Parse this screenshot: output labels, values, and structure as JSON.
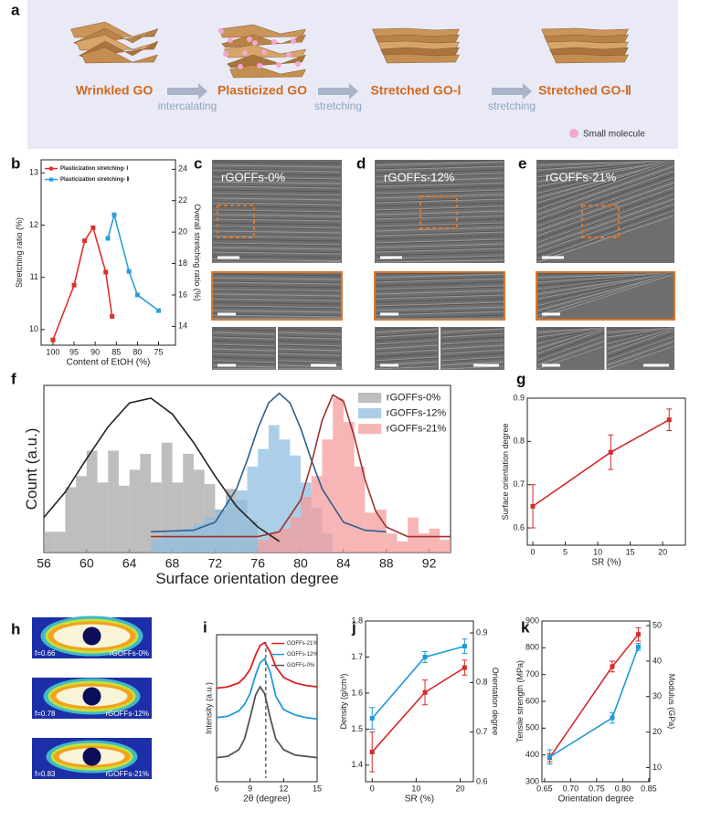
{
  "panel_a": {
    "label": "a",
    "stages": [
      "Wrinkled GO",
      "Plasticized GO",
      "Stretched GO-Ⅰ",
      "Stretched GO-Ⅱ"
    ],
    "steps": [
      "intercalating",
      "stretching",
      "stretching"
    ],
    "legend": "Small molecule"
  },
  "sem_panels": [
    {
      "label": "c",
      "sample": "rGOFFs-0%"
    },
    {
      "label": "d",
      "sample": "rGOFFs-12%"
    },
    {
      "label": "e",
      "sample": "rGOFFs-21%"
    }
  ],
  "patterns": {
    "label": "h",
    "items": [
      {
        "f": "f=0.66",
        "sample": "rGOFFs-0%"
      },
      {
        "f": "f=0.78",
        "sample": "rGOFFs-12%"
      },
      {
        "f": "f=0.83",
        "sample": "rGOFFs-21%"
      }
    ]
  },
  "chart_data": [
    {
      "label": "b",
      "type": "line",
      "markers": true,
      "xlabel": "Content of EtOH (%)",
      "ylabel": "Stretching ratio (%)",
      "y2label": "Overall stretching ratio (%)",
      "xlim": [
        102.8,
        71
      ],
      "xticks": [
        100,
        95,
        90,
        85,
        80,
        75
      ],
      "ylim": [
        9.7,
        13.25
      ],
      "yticks": [
        10,
        11,
        12,
        13
      ],
      "y2lim": [
        12.8,
        24.6
      ],
      "y2ticks": [
        14,
        16,
        18,
        20,
        22,
        24
      ],
      "legend": "upper left",
      "series": [
        {
          "name": "Plasticization stretching- Ⅰ",
          "color": "#e0302a",
          "x": [
            100,
            95,
            92.5,
            90.5,
            87.5,
            86
          ],
          "values": [
            9.8,
            10.85,
            11.7,
            11.95,
            11.1,
            10.25
          ]
        },
        {
          "name": "Plasticization stretching- Ⅱ",
          "color": "#2a9fd6",
          "axis": "y2",
          "x": [
            87,
            85.5,
            82,
            80,
            75
          ],
          "values": [
            19.6,
            21.1,
            17.5,
            16,
            15
          ]
        }
      ]
    },
    {
      "label": "f",
      "type": "histogram",
      "xlabel": "Surface orientation degree",
      "ylabel": "Count (a.u.)",
      "xlim": [
        56,
        94
      ],
      "xticks": [
        56,
        60,
        64,
        68,
        72,
        76,
        80,
        84,
        88,
        92
      ],
      "ylim": [
        0,
        105
      ],
      "legend": "upper right",
      "series": [
        {
          "name": "rGOFFs-0%",
          "color": "#a8a8a8",
          "bins": [
            56,
            57,
            58,
            59,
            60,
            61,
            62,
            63,
            64,
            65,
            66,
            67,
            68,
            69,
            70,
            71,
            72,
            73,
            74,
            75,
            76
          ],
          "counts": [
            13,
            13,
            41,
            48,
            64,
            44,
            64,
            42,
            52,
            62,
            44,
            69,
            44,
            62,
            52,
            43,
            27,
            40,
            33,
            20
          ]
        },
        {
          "name": "rGOFFs-12%",
          "color": "#8fbfe0",
          "bins": [
            66,
            67,
            68,
            69,
            70,
            71,
            72,
            73,
            74,
            75,
            76,
            77,
            78,
            79,
            80,
            81,
            82,
            83
          ],
          "counts": [
            8,
            12,
            13,
            15,
            18,
            22,
            27,
            33,
            39,
            54,
            65,
            80,
            71,
            61,
            44,
            28,
            12
          ]
        },
        {
          "name": "rGOFFs-21%",
          "color": "#f49c9c",
          "bins": [
            76,
            77,
            78,
            79,
            80,
            81,
            82,
            83,
            84,
            85,
            86,
            87,
            88,
            89,
            90,
            91,
            92,
            93,
            94
          ],
          "counts": [
            8,
            12,
            15,
            22,
            35,
            48,
            71,
            97,
            82,
            54,
            25,
            27,
            12,
            7,
            22,
            12,
            15,
            8
          ]
        }
      ],
      "fits": [
        {
          "color": "#222222",
          "x": [
            56,
            58,
            60,
            62,
            64,
            66,
            68,
            70,
            72,
            74,
            76,
            78
          ],
          "values": [
            22,
            38,
            59,
            79,
            94,
            97,
            87,
            69,
            48,
            29,
            16,
            7
          ]
        },
        {
          "color": "#2c5f8a",
          "x": [
            66,
            70,
            72,
            74,
            75,
            76,
            77,
            78,
            79,
            80,
            81,
            82,
            84,
            86,
            88
          ],
          "values": [
            13,
            14,
            19,
            40,
            58,
            78,
            94,
            100,
            94,
            78,
            58,
            40,
            19,
            14,
            13
          ]
        },
        {
          "color": "#a03030",
          "x": [
            66,
            76,
            78,
            80,
            81,
            82,
            83,
            84,
            85,
            86,
            87,
            88,
            90,
            94
          ],
          "values": [
            10,
            10,
            13,
            33,
            56,
            83,
            99,
            95,
            73,
            46,
            26,
            16,
            10,
            10
          ]
        }
      ]
    },
    {
      "label": "g",
      "type": "line",
      "markers": true,
      "xlabel": "SR (%)",
      "ylabel": "Surface orientation degree",
      "xlim": [
        -0.85,
        23.5
      ],
      "xticks": [
        0,
        5,
        10,
        15,
        20
      ],
      "ylim": [
        0.56,
        0.9
      ],
      "yticks": [
        0.6,
        0.7,
        0.8,
        0.9
      ],
      "x": [
        0,
        12,
        21
      ],
      "series": [
        {
          "color": "#d42a2a",
          "values": [
            0.65,
            0.775,
            0.85
          ],
          "errors": [
            0.05,
            0.04,
            0.025
          ]
        }
      ]
    },
    {
      "label": "i",
      "type": "line",
      "markers": false,
      "xlabel": "2θ (degree)",
      "ylabel": "Intensity (a.u.)",
      "xlim": [
        6,
        15
      ],
      "xticks": [
        6,
        9,
        12,
        15
      ],
      "ylim": [
        0,
        110
      ],
      "vline": 10.4,
      "legend": "upper right",
      "x": [
        6,
        7,
        8,
        8.5,
        9,
        9.5,
        9.9,
        10.3,
        10.8,
        11.3,
        12,
        13,
        14,
        15
      ],
      "series": [
        {
          "name": "GOFFs-21%",
          "color": "#e02020",
          "values": [
            70,
            71,
            74,
            78,
            84,
            95,
            102,
            104,
            97,
            86,
            78,
            74,
            72,
            71
          ]
        },
        {
          "name": "GOFFs-12%",
          "color": "#1e9ad6",
          "values": [
            48,
            49,
            53,
            58,
            66,
            80,
            89,
            92,
            82,
            64,
            54,
            50,
            48,
            47
          ]
        },
        {
          "name": "GOFFs-0%",
          "color": "#555555",
          "values": [
            18,
            19,
            24,
            32,
            48,
            65,
            71,
            66,
            48,
            32,
            24,
            20,
            19,
            18
          ]
        }
      ]
    },
    {
      "label": "j",
      "type": "line",
      "markers": true,
      "xlabel": "SR (%)",
      "ylabel": "Density (g/cm³)",
      "y2label": "Orientation degree",
      "xlim": [
        -1.5,
        23
      ],
      "xticks": [
        0,
        10,
        20
      ],
      "ylim": [
        1.354,
        1.8
      ],
      "yticks": [
        1.4,
        1.5,
        1.6,
        1.7,
        1.8
      ],
      "y2lim": [
        0.6,
        0.924
      ],
      "y2ticks": [
        0.6,
        0.7,
        0.8,
        0.9
      ],
      "x": [
        0,
        12,
        21
      ],
      "series": [
        {
          "color": "#1e9ad6",
          "values": [
            1.53,
            1.7,
            1.73
          ],
          "errors": [
            0.03,
            0.015,
            0.02
          ]
        },
        {
          "color": "#d42a2a",
          "axis": "y2",
          "values": [
            0.66,
            0.78,
            0.83
          ],
          "errors": [
            0.04,
            0.025,
            0.015
          ]
        }
      ]
    },
    {
      "label": "k",
      "type": "line",
      "markers": true,
      "xlabel": "Orientation degree",
      "ylabel": "Tensile strength (MPa)",
      "y2label": "Modulus (GPa)",
      "xlim": [
        0.645,
        0.852
      ],
      "xticks": [
        0.65,
        {
          "value": 0.7,
          "label": "0.70"
        },
        0.75,
        {
          "value": 0.8,
          "label": "0.80"
        },
        0.85
      ],
      "ylim": [
        300,
        900
      ],
      "yticks": [
        300,
        400,
        500,
        600,
        700,
        800,
        900
      ],
      "y2lim": [
        6,
        51.3
      ],
      "y2ticks": [
        10,
        20,
        30,
        40,
        50
      ],
      "x": [
        0.66,
        0.78,
        0.83
      ],
      "series": [
        {
          "color": "#d42a2a",
          "values": [
            390,
            730,
            850
          ],
          "errors": [
            15,
            20,
            25
          ]
        },
        {
          "color": "#1e9ad6",
          "axis": "y2",
          "values": [
            13,
            24,
            44
          ],
          "errors": [
            2,
            1.5,
            1
          ]
        }
      ]
    }
  ]
}
